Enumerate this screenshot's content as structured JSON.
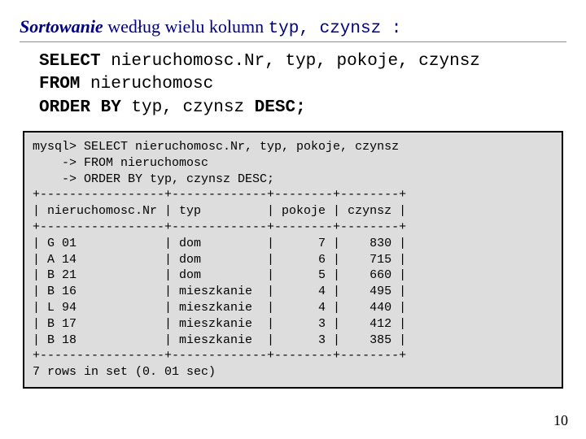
{
  "heading": {
    "sort_word": "Sortowanie",
    "rest": " według wielu kolumn ",
    "mono_cols": "typ, czynsz",
    "colon": " :"
  },
  "sql": {
    "line1_kw": "SELECT",
    "line1_rest": " nieruchomosc.Nr, typ, pokoje, czynsz",
    "line2_kw": "FROM",
    "line2_rest": " nieruchomosc",
    "line3_kw1": "ORDER BY",
    "line3_mid": " typ, czynsz ",
    "line3_kw2": "DESC;"
  },
  "terminal": {
    "line01": "mysql> SELECT nieruchomosc.Nr, typ, pokoje, czynsz",
    "line02": "    -> FROM nieruchomosc",
    "line03": "    -> ORDER BY typ, czynsz DESC;",
    "sep": "+-----------------+-------------+--------+--------+",
    "header": "| nieruchomosc.Nr | typ         | pokoje | czynsz |",
    "row1": "| G 01            | dom         |      7 |    830 |",
    "row2": "| A 14            | dom         |      6 |    715 |",
    "row3": "| B 21            | dom         |      5 |    660 |",
    "row4": "| B 16            | mieszkanie  |      4 |    495 |",
    "row5": "| L 94            | mieszkanie  |      4 |    440 |",
    "row6": "| B 17            | mieszkanie  |      3 |    412 |",
    "row7": "| B 18            | mieszkanie  |      3 |    385 |",
    "footer": "7 rows in set (0. 01 sec)"
  },
  "page_number": "10"
}
